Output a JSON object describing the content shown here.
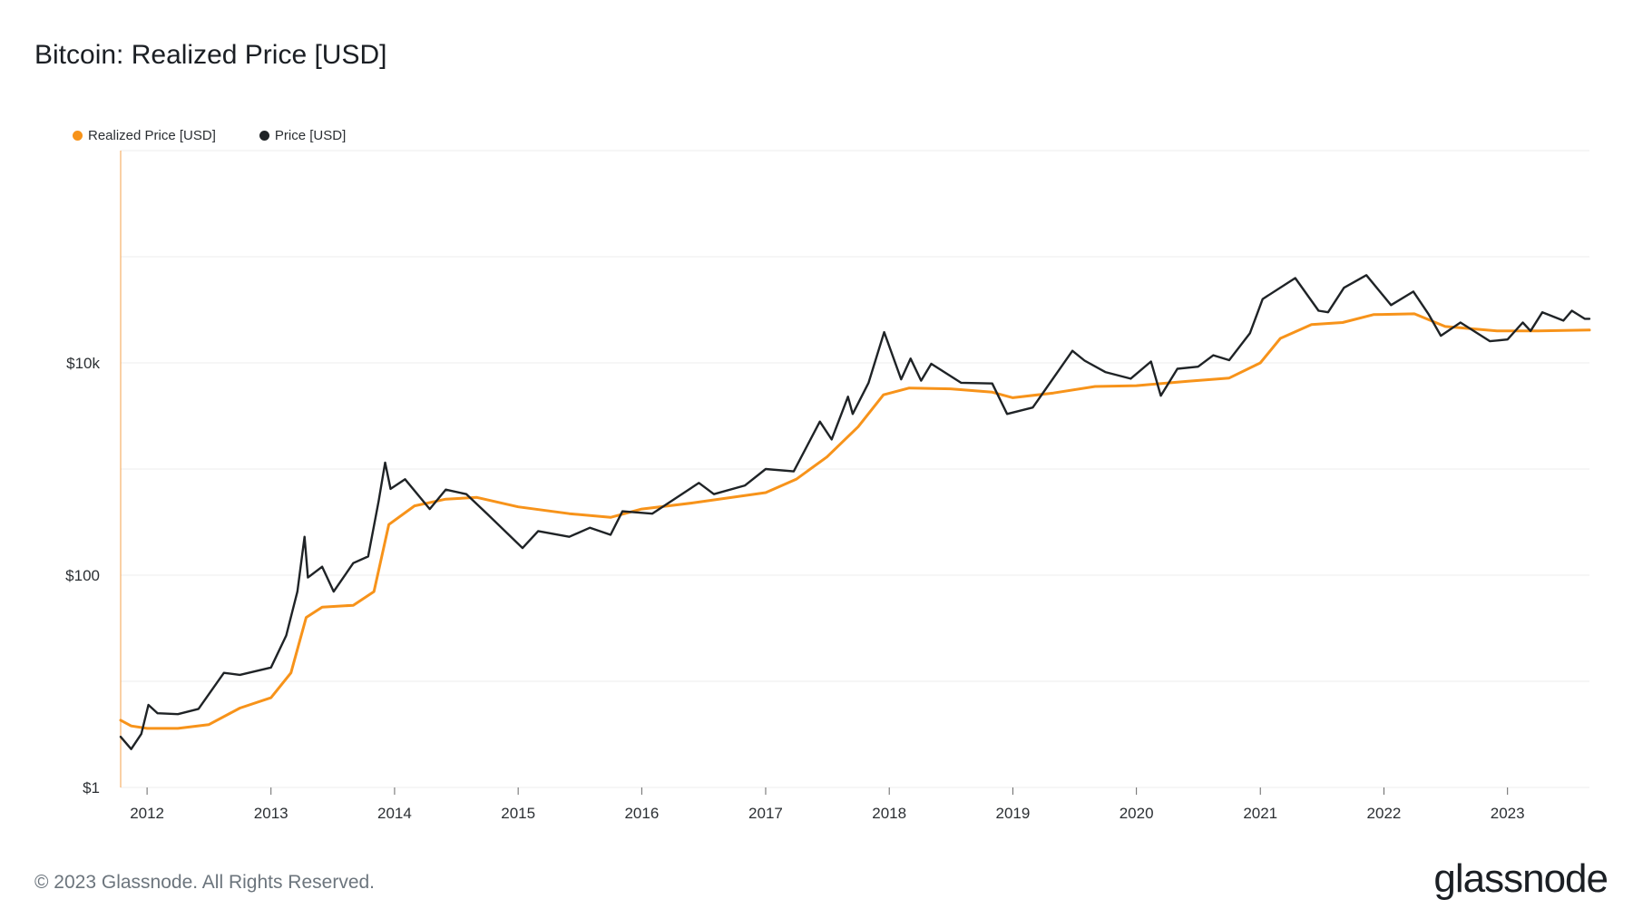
{
  "header": {
    "title": "Bitcoin: Realized Price [USD]"
  },
  "footer": {
    "copyright": "© 2023 Glassnode. All Rights Reserved.",
    "brand": "glassnode"
  },
  "colors": {
    "realized": "#f7931a",
    "price": "#1f2326",
    "grid": "#eeeeee",
    "axis": "#f7b06a"
  },
  "chart_data": {
    "type": "line",
    "title": "Bitcoin: Realized Price [USD]",
    "xlabel": "",
    "ylabel": "",
    "y_scale": "log",
    "ylim": [
      1,
      1000000
    ],
    "xlim": [
      "2011-10-15",
      "2023-08-31"
    ],
    "y_ticks": [
      {
        "value": 1,
        "label": "$1"
      },
      {
        "value": 100,
        "label": "$100"
      },
      {
        "value": 10000,
        "label": "$10k"
      }
    ],
    "x_ticks": [
      {
        "value": "2012-01-01",
        "label": "2012"
      },
      {
        "value": "2013-01-01",
        "label": "2013"
      },
      {
        "value": "2014-01-01",
        "label": "2014"
      },
      {
        "value": "2015-01-01",
        "label": "2015"
      },
      {
        "value": "2016-01-01",
        "label": "2016"
      },
      {
        "value": "2017-01-01",
        "label": "2017"
      },
      {
        "value": "2018-01-01",
        "label": "2018"
      },
      {
        "value": "2019-01-01",
        "label": "2019"
      },
      {
        "value": "2020-01-01",
        "label": "2020"
      },
      {
        "value": "2021-01-01",
        "label": "2021"
      },
      {
        "value": "2022-01-01",
        "label": "2022"
      },
      {
        "value": "2023-01-01",
        "label": "2023"
      }
    ],
    "grid": true,
    "legend": "top-left",
    "series": [
      {
        "name": "Realized Price [USD]",
        "color": "#f7931a",
        "points": [
          [
            "2011-10-15",
            4.3
          ],
          [
            "2011-11-15",
            3.8
          ],
          [
            "2012-01-01",
            3.6
          ],
          [
            "2012-04-01",
            3.6
          ],
          [
            "2012-07-01",
            3.9
          ],
          [
            "2012-10-01",
            5.6
          ],
          [
            "2013-01-01",
            7.0
          ],
          [
            "2013-03-01",
            12
          ],
          [
            "2013-04-15",
            40
          ],
          [
            "2013-06-01",
            50
          ],
          [
            "2013-09-01",
            52
          ],
          [
            "2013-11-01",
            70
          ],
          [
            "2013-12-15",
            300
          ],
          [
            "2014-03-01",
            450
          ],
          [
            "2014-06-01",
            520
          ],
          [
            "2014-09-01",
            540
          ],
          [
            "2015-01-01",
            440
          ],
          [
            "2015-06-01",
            380
          ],
          [
            "2015-10-01",
            350
          ],
          [
            "2016-01-01",
            420
          ],
          [
            "2016-06-01",
            480
          ],
          [
            "2017-01-01",
            600
          ],
          [
            "2017-04-01",
            800
          ],
          [
            "2017-07-01",
            1300
          ],
          [
            "2017-10-01",
            2500
          ],
          [
            "2017-12-15",
            5000
          ],
          [
            "2018-03-01",
            5800
          ],
          [
            "2018-07-01",
            5700
          ],
          [
            "2018-11-01",
            5300
          ],
          [
            "2019-01-01",
            4700
          ],
          [
            "2019-05-01",
            5200
          ],
          [
            "2019-09-01",
            6000
          ],
          [
            "2020-01-01",
            6100
          ],
          [
            "2020-06-01",
            6700
          ],
          [
            "2020-10-01",
            7200
          ],
          [
            "2021-01-01",
            10000
          ],
          [
            "2021-03-01",
            17000
          ],
          [
            "2021-06-01",
            23000
          ],
          [
            "2021-09-01",
            24000
          ],
          [
            "2021-12-01",
            28500
          ],
          [
            "2022-04-01",
            29000
          ],
          [
            "2022-07-01",
            22000
          ],
          [
            "2022-12-01",
            20000
          ],
          [
            "2023-04-01",
            20000
          ],
          [
            "2023-08-31",
            20400
          ]
        ]
      },
      {
        "name": "Price [USD]",
        "color": "#1f2326",
        "points": [
          [
            "2011-10-15",
            3.0
          ],
          [
            "2011-11-15",
            2.3
          ],
          [
            "2011-12-15",
            3.2
          ],
          [
            "2012-01-05",
            6.0
          ],
          [
            "2012-02-01",
            5.0
          ],
          [
            "2012-04-01",
            4.9
          ],
          [
            "2012-06-01",
            5.5
          ],
          [
            "2012-08-15",
            12
          ],
          [
            "2012-10-01",
            11.5
          ],
          [
            "2013-01-01",
            13.5
          ],
          [
            "2013-02-15",
            27
          ],
          [
            "2013-03-20",
            70
          ],
          [
            "2013-04-10",
            230
          ],
          [
            "2013-04-20",
            95
          ],
          [
            "2013-06-01",
            120
          ],
          [
            "2013-07-05",
            70
          ],
          [
            "2013-09-01",
            130
          ],
          [
            "2013-10-15",
            150
          ],
          [
            "2013-11-15",
            500
          ],
          [
            "2013-12-04",
            1150
          ],
          [
            "2013-12-20",
            650
          ],
          [
            "2014-02-01",
            800
          ],
          [
            "2014-04-15",
            420
          ],
          [
            "2014-06-01",
            640
          ],
          [
            "2014-08-01",
            580
          ],
          [
            "2014-10-01",
            380
          ],
          [
            "2015-01-14",
            180
          ],
          [
            "2015-03-01",
            260
          ],
          [
            "2015-06-01",
            230
          ],
          [
            "2015-08-01",
            280
          ],
          [
            "2015-10-01",
            240
          ],
          [
            "2015-11-05",
            400
          ],
          [
            "2016-02-01",
            380
          ],
          [
            "2016-06-18",
            740
          ],
          [
            "2016-08-01",
            580
          ],
          [
            "2016-11-01",
            700
          ],
          [
            "2017-01-01",
            1000
          ],
          [
            "2017-03-25",
            950
          ],
          [
            "2017-06-10",
            2800
          ],
          [
            "2017-07-15",
            1900
          ],
          [
            "2017-09-01",
            4800
          ],
          [
            "2017-09-15",
            3300
          ],
          [
            "2017-11-01",
            6500
          ],
          [
            "2017-12-17",
            19500
          ],
          [
            "2018-02-05",
            7000
          ],
          [
            "2018-03-05",
            11000
          ],
          [
            "2018-04-05",
            6800
          ],
          [
            "2018-05-05",
            9800
          ],
          [
            "2018-08-01",
            6500
          ],
          [
            "2018-11-01",
            6400
          ],
          [
            "2018-12-15",
            3300
          ],
          [
            "2019-03-01",
            3800
          ],
          [
            "2019-06-26",
            13000
          ],
          [
            "2019-08-01",
            10500
          ],
          [
            "2019-10-01",
            8200
          ],
          [
            "2019-12-15",
            7100
          ],
          [
            "2020-02-13",
            10300
          ],
          [
            "2020-03-13",
            4900
          ],
          [
            "2020-05-01",
            8800
          ],
          [
            "2020-07-01",
            9200
          ],
          [
            "2020-08-15",
            11800
          ],
          [
            "2020-10-01",
            10600
          ],
          [
            "2020-12-01",
            19000
          ],
          [
            "2021-01-08",
            40000
          ],
          [
            "2021-04-14",
            63000
          ],
          [
            "2021-06-22",
            31000
          ],
          [
            "2021-07-20",
            30000
          ],
          [
            "2021-09-05",
            51000
          ],
          [
            "2021-11-10",
            67000
          ],
          [
            "2022-01-22",
            35000
          ],
          [
            "2022-03-29",
            47000
          ],
          [
            "2022-05-12",
            29000
          ],
          [
            "2022-06-18",
            18000
          ],
          [
            "2022-08-15",
            24000
          ],
          [
            "2022-11-10",
            16000
          ],
          [
            "2023-01-01",
            16600
          ],
          [
            "2023-02-15",
            24000
          ],
          [
            "2023-03-10",
            20000
          ],
          [
            "2023-04-14",
            30000
          ],
          [
            "2023-06-15",
            25000
          ],
          [
            "2023-07-10",
            31000
          ],
          [
            "2023-08-17",
            26000
          ],
          [
            "2023-08-31",
            26000
          ]
        ]
      }
    ]
  }
}
